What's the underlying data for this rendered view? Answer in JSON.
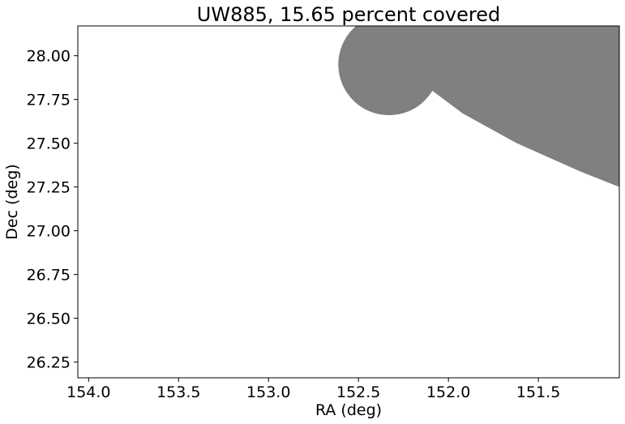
{
  "chart_data": {
    "type": "area",
    "title": "UW885, 15.65 percent covered",
    "xlabel": "RA (deg)",
    "ylabel": "Dec (deg)",
    "xlim": [
      154.06,
      151.05
    ],
    "ylim": [
      26.16,
      28.17
    ],
    "x_inverted": true,
    "x_ticks": [
      154.0,
      153.5,
      153.0,
      152.5,
      152.0,
      151.5
    ],
    "x_tick_labels": [
      "154.0",
      "153.5",
      "153.0",
      "152.5",
      "152.0",
      "151.5"
    ],
    "y_ticks": [
      26.25,
      26.5,
      26.75,
      27.0,
      27.25,
      27.5,
      27.75,
      28.0
    ],
    "y_tick_labels": [
      "26.25",
      "26.50",
      "26.75",
      "27.00",
      "27.25",
      "27.50",
      "27.75",
      "28.00"
    ],
    "grid": false,
    "colors": {
      "coverage": "#808080",
      "axes": "#000000",
      "background": "#ffffff"
    },
    "series": [
      {
        "shape": "circle",
        "center": [
          152.33,
          27.95
        ],
        "radius": 0.29,
        "values": []
      },
      {
        "shape": "polygon",
        "x": [
          152.35,
          151.05,
          151.05,
          151.27,
          151.62,
          151.92,
          152.09,
          152.35
        ],
        "y": [
          28.17,
          28.17,
          27.25,
          27.34,
          27.5,
          27.67,
          27.8,
          28.17
        ]
      }
    ]
  }
}
